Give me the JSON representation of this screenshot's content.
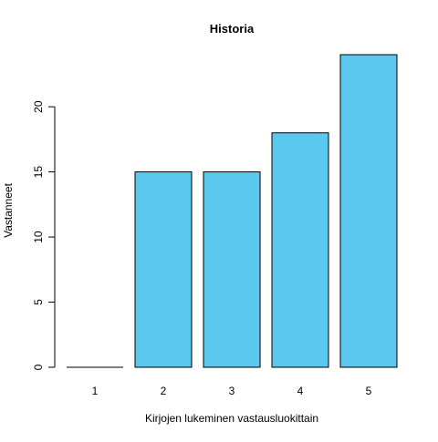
{
  "chart_data": {
    "type": "bar",
    "title": "Historia",
    "xlabel": "Kirjojen lukeminen vastausluokittain",
    "ylabel": "Vastanneet",
    "categories": [
      "1",
      "2",
      "3",
      "4",
      "5"
    ],
    "values": [
      0,
      15,
      15,
      18,
      24
    ],
    "yticks": [
      "0",
      "5",
      "10",
      "15",
      "20"
    ],
    "ylim": [
      0,
      24
    ],
    "grid": false,
    "legend": "none",
    "bar_color": "#5bc8ed",
    "bar_edge_color": "#000000"
  }
}
